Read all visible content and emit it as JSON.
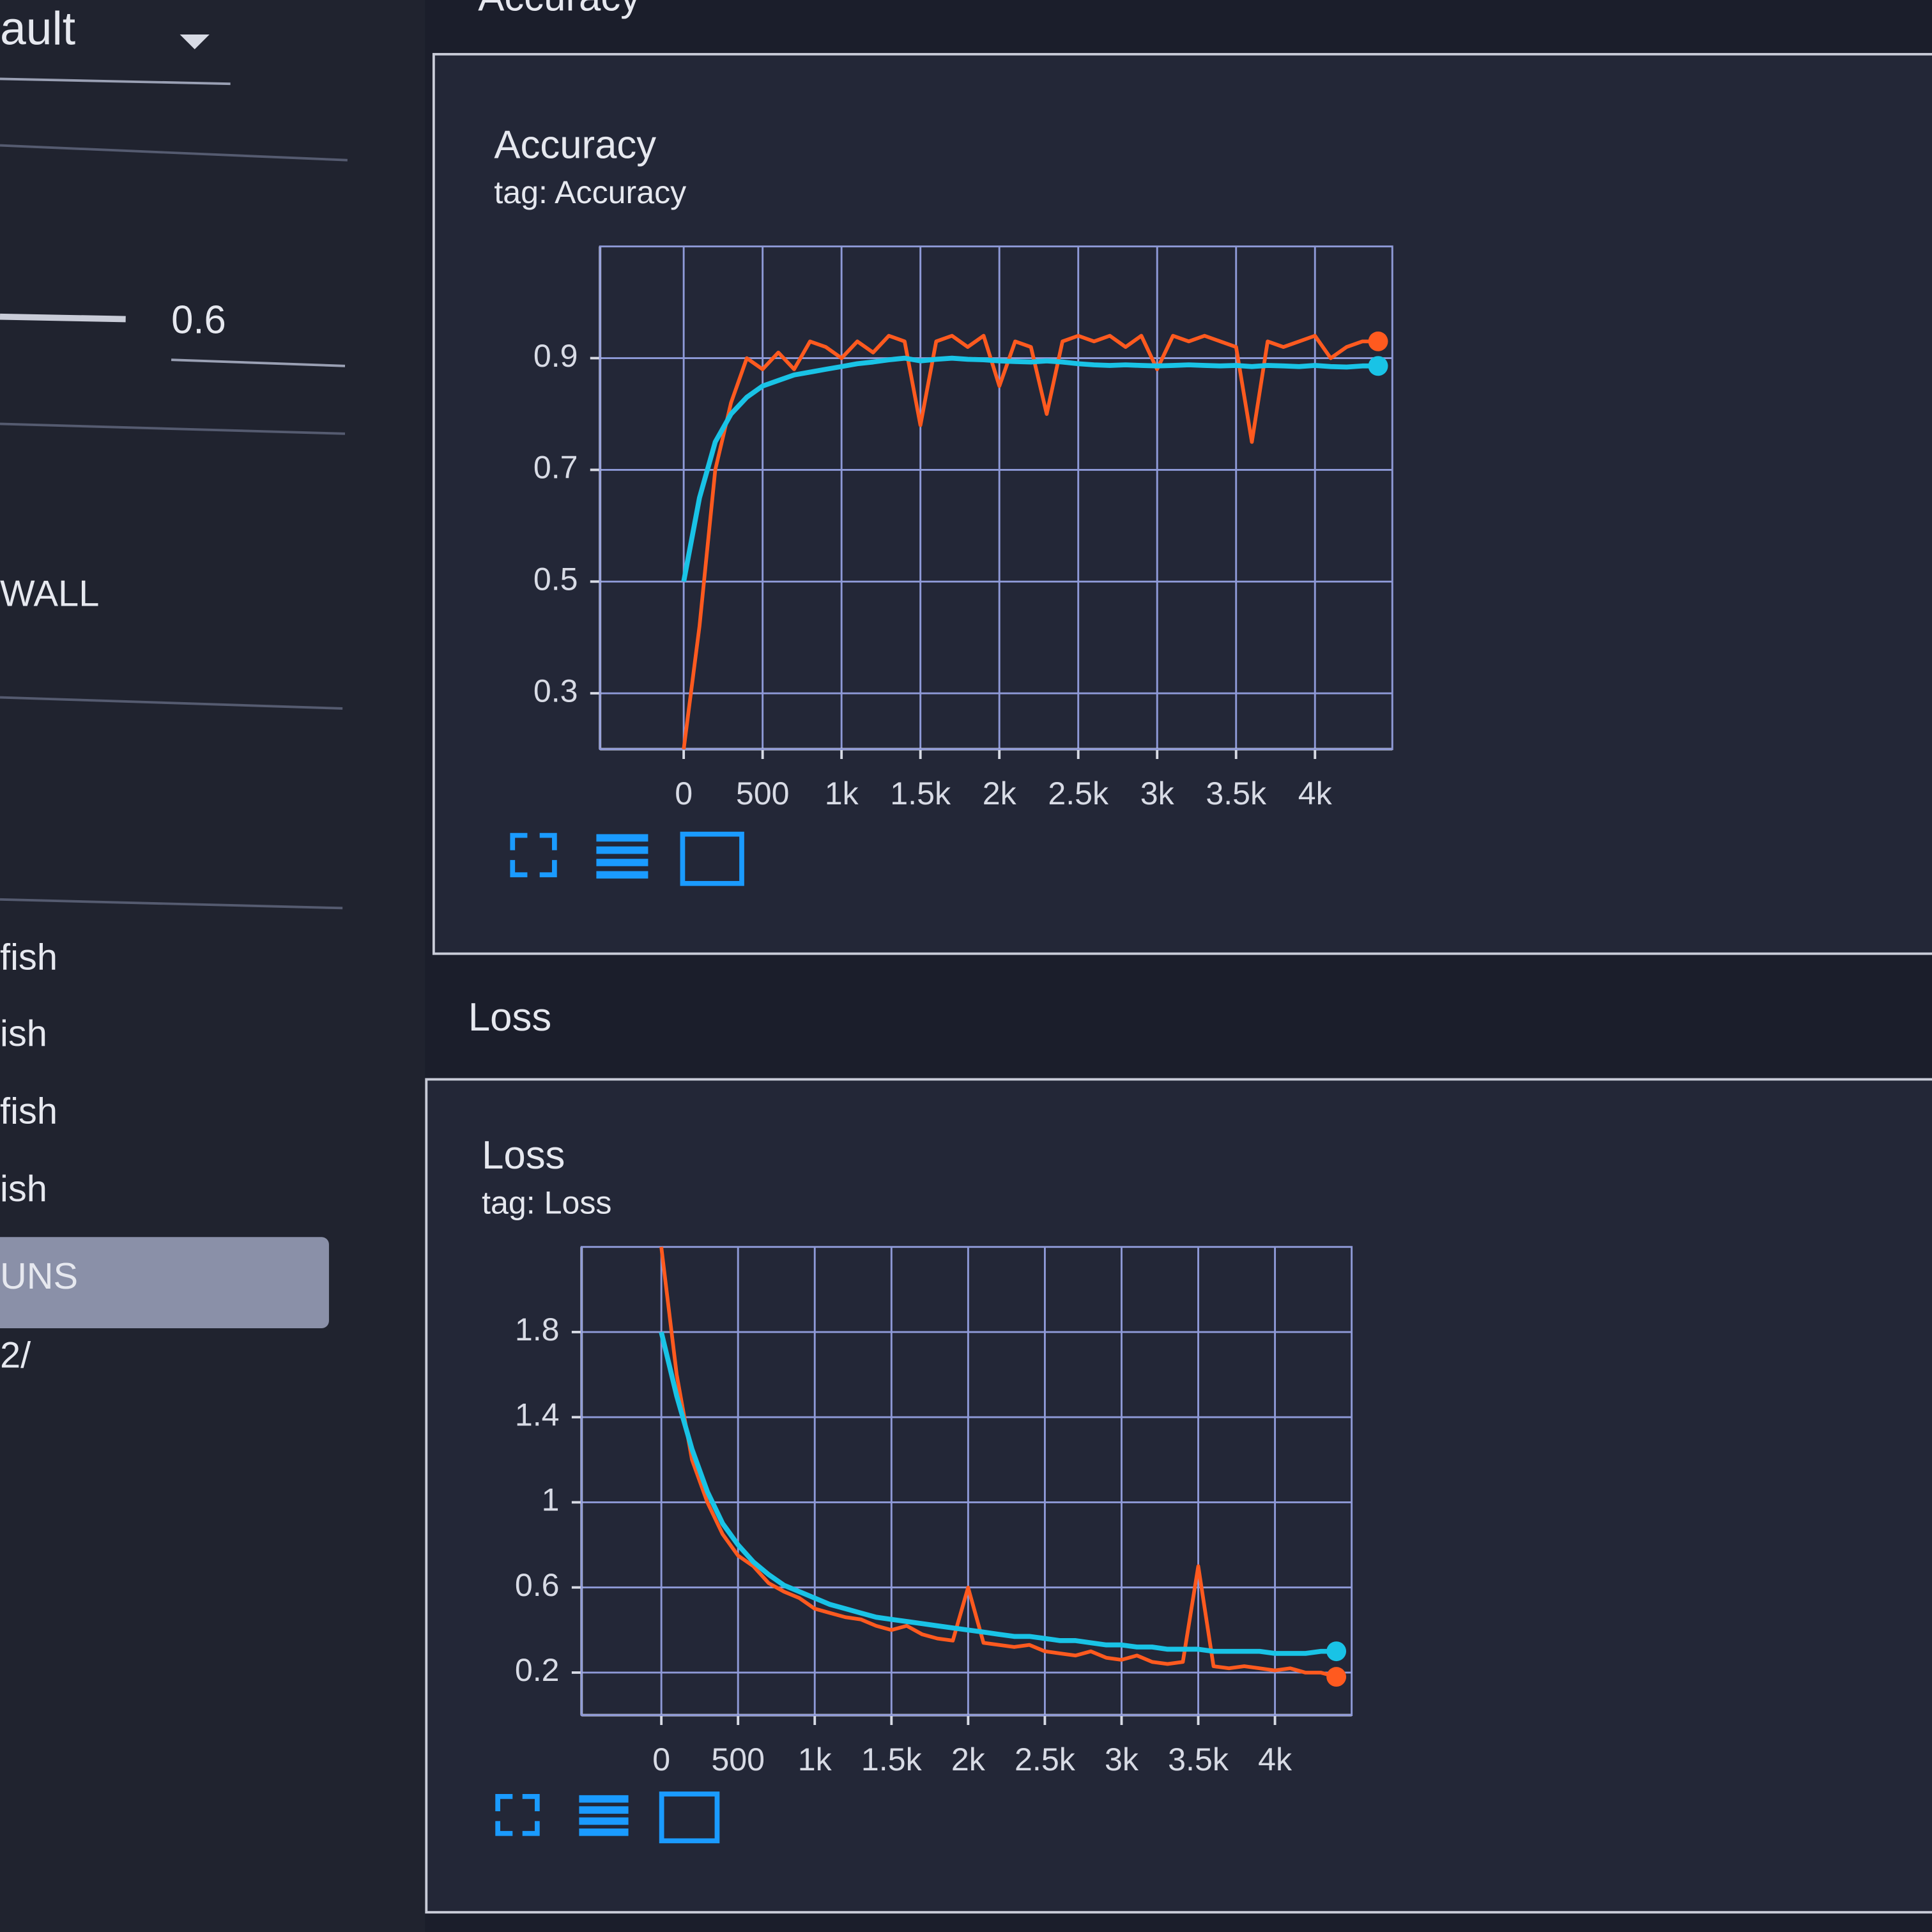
{
  "sidebar": {
    "dropdown": "ault",
    "slider_value": "0.6",
    "toggle": "WALL",
    "runs": [
      "fish",
      "ish",
      "fish",
      "ish"
    ],
    "button": "UNS",
    "path": "2/"
  },
  "sections": [
    "Accuracy",
    "Loss"
  ],
  "chart_data": [
    {
      "type": "line",
      "title": "Accuracy",
      "subtitle": "tag: Accuracy",
      "x": [
        0,
        100,
        200,
        300,
        400,
        500,
        600,
        700,
        800,
        900,
        1000,
        1100,
        1200,
        1300,
        1400,
        1500,
        1600,
        1700,
        1800,
        1900,
        2000,
        2100,
        2200,
        2300,
        2400,
        2500,
        2600,
        2700,
        2800,
        2900,
        3000,
        3100,
        3200,
        3300,
        3400,
        3500,
        3600,
        3700,
        3800,
        3900,
        4000,
        4100,
        4200,
        4300,
        4400
      ],
      "series": [
        {
          "color": "#ff5a1f",
          "values": [
            0.2,
            0.42,
            0.7,
            0.82,
            0.9,
            0.88,
            0.91,
            0.88,
            0.93,
            0.92,
            0.9,
            0.93,
            0.91,
            0.94,
            0.93,
            0.78,
            0.93,
            0.94,
            0.92,
            0.94,
            0.85,
            0.93,
            0.92,
            0.8,
            0.93,
            0.94,
            0.93,
            0.94,
            0.92,
            0.94,
            0.88,
            0.94,
            0.93,
            0.94,
            0.93,
            0.92,
            0.75,
            0.93,
            0.92,
            0.93,
            0.94,
            0.9,
            0.92,
            0.93,
            0.93
          ]
        },
        {
          "color": "#19c3e6",
          "values": [
            0.5,
            0.65,
            0.75,
            0.8,
            0.83,
            0.85,
            0.86,
            0.87,
            0.875,
            0.88,
            0.885,
            0.89,
            0.893,
            0.897,
            0.9,
            0.895,
            0.898,
            0.9,
            0.898,
            0.897,
            0.895,
            0.894,
            0.893,
            0.895,
            0.893,
            0.89,
            0.888,
            0.887,
            0.888,
            0.887,
            0.886,
            0.887,
            0.888,
            0.887,
            0.886,
            0.887,
            0.885,
            0.887,
            0.886,
            0.885,
            0.887,
            0.885,
            0.884,
            0.886,
            0.886
          ]
        }
      ],
      "xlim": [
        -530,
        4490
      ],
      "ylim": [
        0.2,
        1.1
      ],
      "xticks": [
        0,
        500,
        {
          "value": 1000,
          "label": "1k"
        },
        {
          "value": 1500,
          "label": "1.5k"
        },
        {
          "value": 2000,
          "label": "2k"
        },
        {
          "value": 2500,
          "label": "2.5k"
        },
        {
          "value": 3000,
          "label": "3k"
        },
        {
          "value": 3500,
          "label": "3.5k"
        },
        {
          "value": 4000,
          "label": "4k"
        }
      ],
      "yticks": [
        0.3,
        0.5,
        0.7,
        0.9
      ],
      "grid": true
    },
    {
      "type": "line",
      "title": "Loss",
      "subtitle": "tag: Loss",
      "x": [
        0,
        100,
        200,
        300,
        400,
        500,
        600,
        700,
        800,
        900,
        1000,
        1100,
        1200,
        1300,
        1400,
        1500,
        1600,
        1700,
        1800,
        1900,
        2000,
        2100,
        2200,
        2300,
        2400,
        2500,
        2600,
        2700,
        2800,
        2900,
        3000,
        3100,
        3200,
        3300,
        3400,
        3500,
        3600,
        3700,
        3800,
        3900,
        4000,
        4100,
        4200,
        4300,
        4400
      ],
      "series": [
        {
          "color": "#ff5a1f",
          "values": [
            2.2,
            1.6,
            1.2,
            1.0,
            0.85,
            0.75,
            0.7,
            0.62,
            0.58,
            0.55,
            0.5,
            0.48,
            0.46,
            0.45,
            0.42,
            0.4,
            0.42,
            0.38,
            0.36,
            0.35,
            0.6,
            0.34,
            0.33,
            0.32,
            0.33,
            0.3,
            0.29,
            0.28,
            0.3,
            0.27,
            0.26,
            0.28,
            0.25,
            0.24,
            0.25,
            0.7,
            0.23,
            0.22,
            0.23,
            0.22,
            0.21,
            0.22,
            0.2,
            0.2,
            0.18
          ]
        },
        {
          "color": "#19c3e6",
          "values": [
            1.8,
            1.5,
            1.25,
            1.05,
            0.9,
            0.8,
            0.72,
            0.66,
            0.61,
            0.58,
            0.55,
            0.52,
            0.5,
            0.48,
            0.46,
            0.45,
            0.44,
            0.43,
            0.42,
            0.41,
            0.4,
            0.39,
            0.38,
            0.37,
            0.37,
            0.36,
            0.35,
            0.35,
            0.34,
            0.33,
            0.33,
            0.32,
            0.32,
            0.31,
            0.31,
            0.31,
            0.3,
            0.3,
            0.3,
            0.3,
            0.29,
            0.29,
            0.29,
            0.3,
            0.3
          ]
        }
      ],
      "xlim": [
        -520,
        4500
      ],
      "ylim": [
        0,
        2.2
      ],
      "xticks": [
        0,
        500,
        {
          "value": 1000,
          "label": "1k"
        },
        {
          "value": 1500,
          "label": "1.5k"
        },
        {
          "value": 2000,
          "label": "2k"
        },
        {
          "value": 2500,
          "label": "2.5k"
        },
        {
          "value": 3000,
          "label": "3k"
        },
        {
          "value": 3500,
          "label": "3.5k"
        },
        {
          "value": 4000,
          "label": "4k"
        }
      ],
      "yticks": [
        0.2,
        0.6,
        1,
        1.4,
        1.8
      ],
      "grid": true
    }
  ]
}
